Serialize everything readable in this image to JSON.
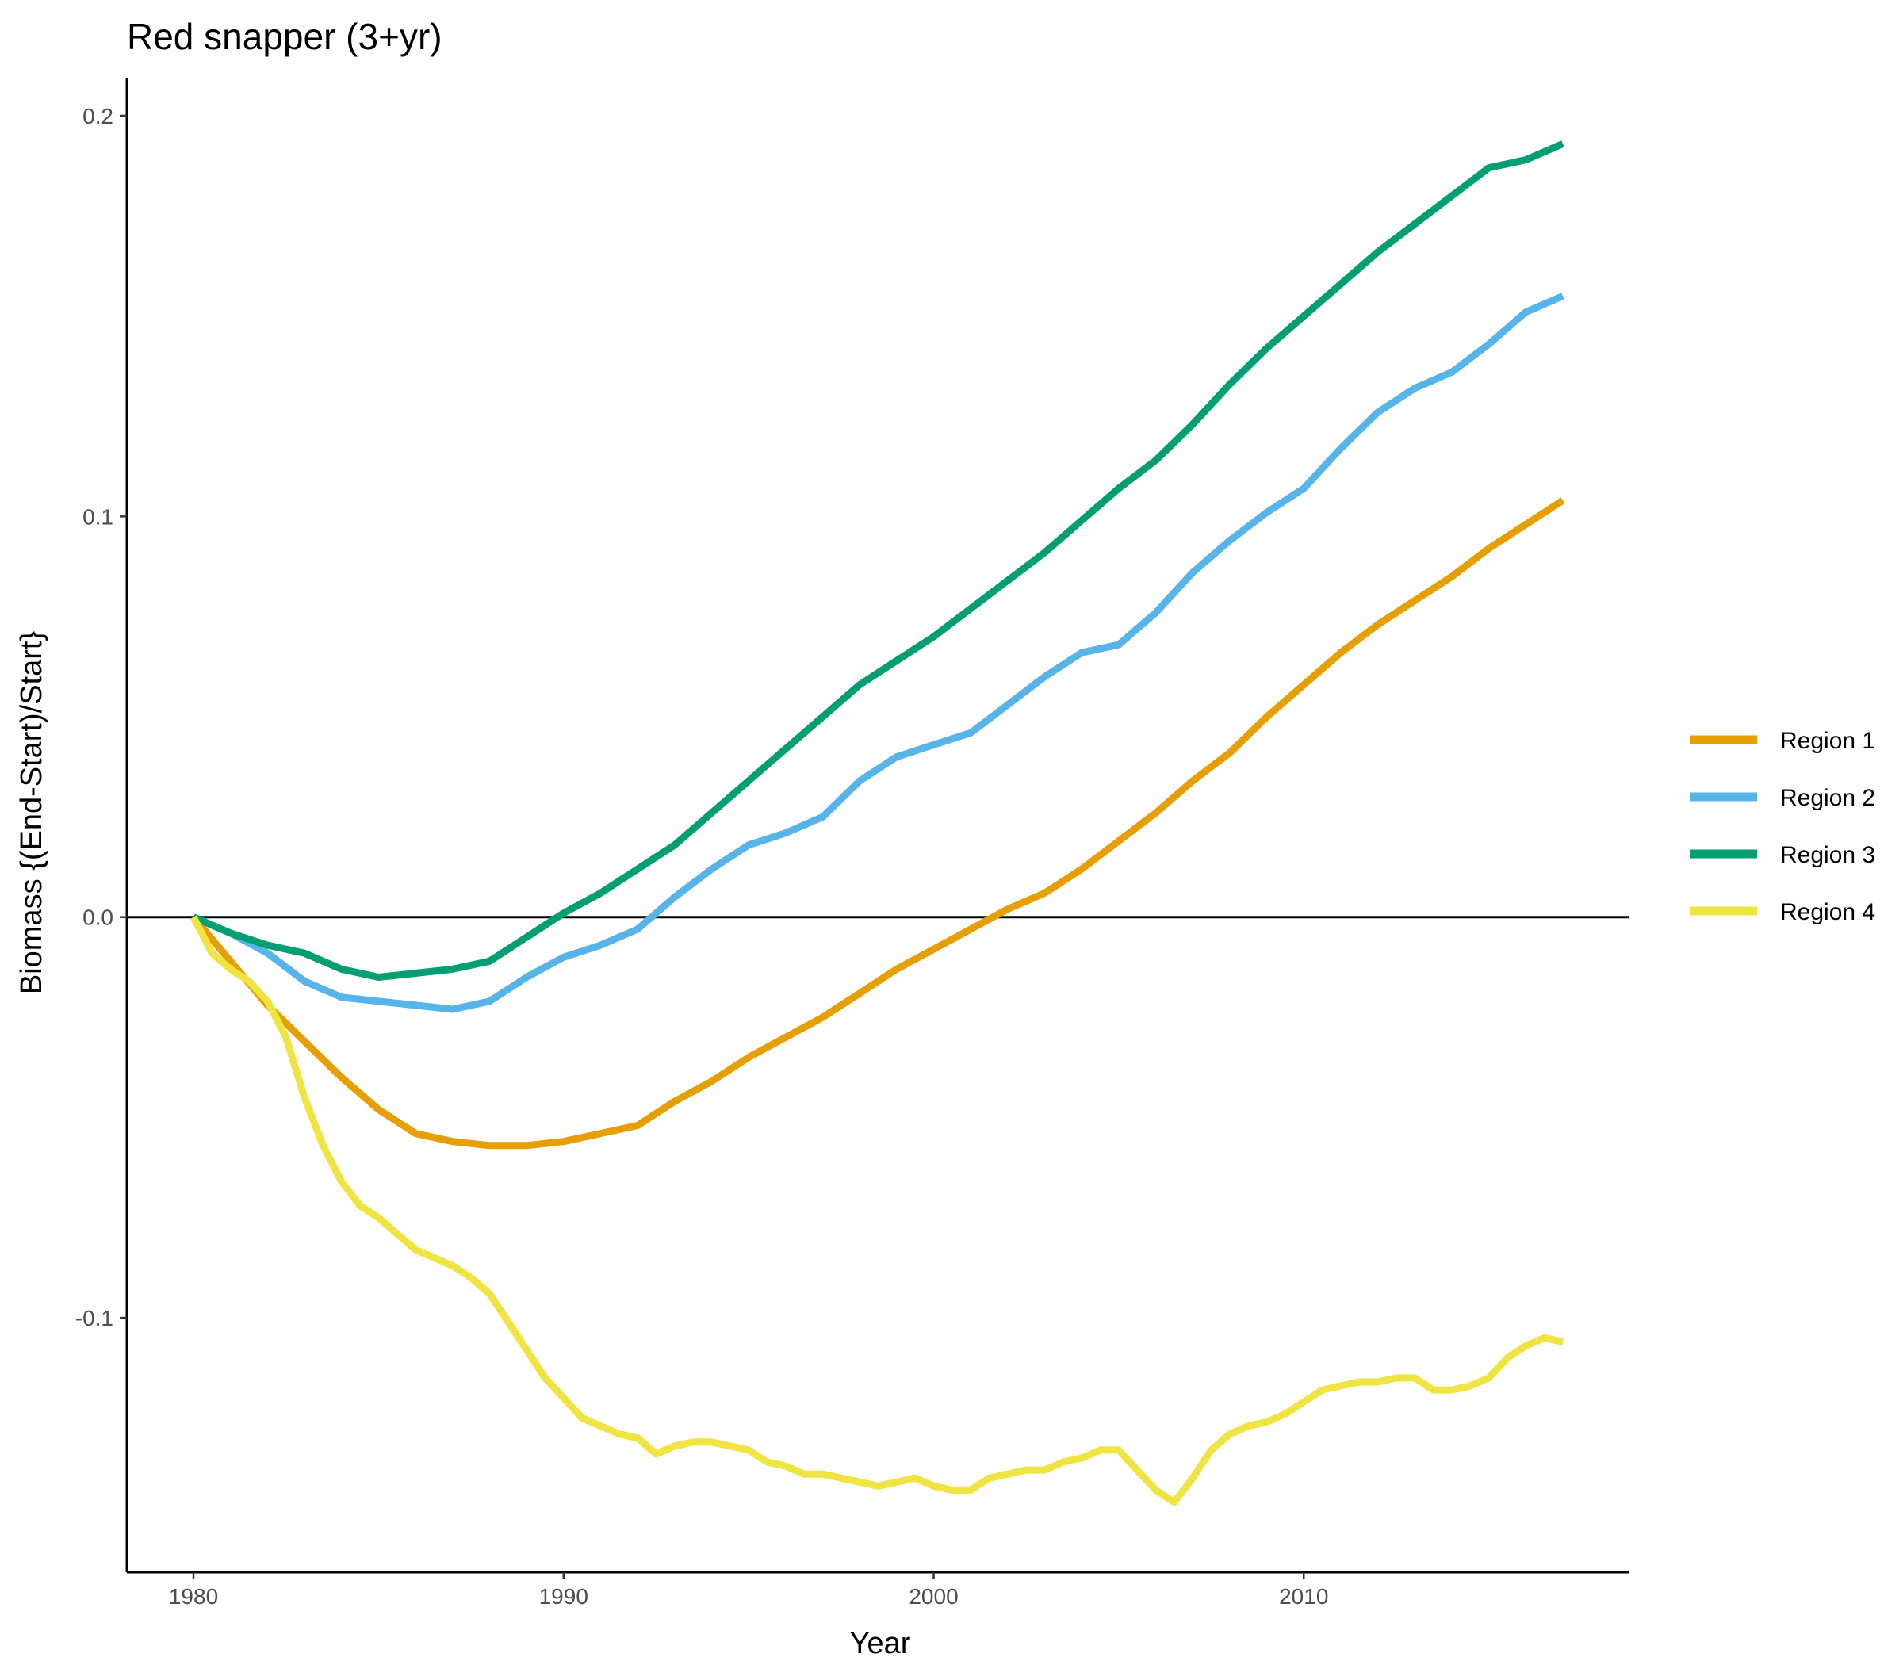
{
  "chart_data": {
    "type": "line",
    "title": "Red snapper (3+yr)",
    "xlabel": "Year",
    "ylabel": "Biomass {(End-Start)/Start}",
    "xlim": [
      1978.2,
      2018.8
    ],
    "ylim": [
      -0.1635,
      0.2095
    ],
    "x_ticks": [
      1980,
      1990,
      2000,
      2010
    ],
    "y_ticks": [
      {
        "value": 0.2,
        "label": "0.2"
      },
      {
        "value": 0.1,
        "label": "0.1"
      },
      {
        "value": 0.0,
        "label": "0.0"
      },
      {
        "value": -0.1,
        "label": "-0.1"
      }
    ],
    "reference_line_y": 0.0,
    "grid": false,
    "legend_position": "right",
    "series": [
      {
        "name": "Region 1",
        "color": "#E69F00",
        "points": [
          [
            1980,
            0.0
          ],
          [
            1981,
            -0.011
          ],
          [
            1982,
            -0.022
          ],
          [
            1983,
            -0.031
          ],
          [
            1984,
            -0.04
          ],
          [
            1985,
            -0.048
          ],
          [
            1986,
            -0.054
          ],
          [
            1987,
            -0.056
          ],
          [
            1988,
            -0.057
          ],
          [
            1989,
            -0.057
          ],
          [
            1990,
            -0.056
          ],
          [
            1991,
            -0.054
          ],
          [
            1992,
            -0.052
          ],
          [
            1993,
            -0.046
          ],
          [
            1994,
            -0.041
          ],
          [
            1995,
            -0.035
          ],
          [
            1996,
            -0.03
          ],
          [
            1997,
            -0.025
          ],
          [
            1998,
            -0.019
          ],
          [
            1999,
            -0.013
          ],
          [
            2000,
            -0.008
          ],
          [
            2001,
            -0.003
          ],
          [
            2002,
            0.002
          ],
          [
            2003,
            0.006
          ],
          [
            2004,
            0.012
          ],
          [
            2005,
            0.019
          ],
          [
            2006,
            0.026
          ],
          [
            2007,
            0.034
          ],
          [
            2008,
            0.041
          ],
          [
            2009,
            0.05
          ],
          [
            2010,
            0.058
          ],
          [
            2011,
            0.066
          ],
          [
            2012,
            0.073
          ],
          [
            2013,
            0.079
          ],
          [
            2014,
            0.085
          ],
          [
            2015,
            0.092
          ],
          [
            2016,
            0.098
          ],
          [
            2017,
            0.104
          ]
        ]
      },
      {
        "name": "Region 2",
        "color": "#56B4E9",
        "points": [
          [
            1980,
            0.0
          ],
          [
            1981,
            -0.004
          ],
          [
            1982,
            -0.009
          ],
          [
            1983,
            -0.016
          ],
          [
            1984,
            -0.02
          ],
          [
            1985,
            -0.021
          ],
          [
            1986,
            -0.022
          ],
          [
            1987,
            -0.023
          ],
          [
            1988,
            -0.021
          ],
          [
            1989,
            -0.015
          ],
          [
            1990,
            -0.01
          ],
          [
            1991,
            -0.007
          ],
          [
            1992,
            -0.003
          ],
          [
            1993,
            0.005
          ],
          [
            1994,
            0.012
          ],
          [
            1995,
            0.018
          ],
          [
            1996,
            0.021
          ],
          [
            1997,
            0.025
          ],
          [
            1998,
            0.034
          ],
          [
            1999,
            0.04
          ],
          [
            2000,
            0.043
          ],
          [
            2001,
            0.046
          ],
          [
            2002,
            0.053
          ],
          [
            2003,
            0.06
          ],
          [
            2004,
            0.066
          ],
          [
            2005,
            0.068
          ],
          [
            2006,
            0.076
          ],
          [
            2007,
            0.086
          ],
          [
            2008,
            0.094
          ],
          [
            2009,
            0.101
          ],
          [
            2010,
            0.107
          ],
          [
            2011,
            0.117
          ],
          [
            2012,
            0.126
          ],
          [
            2013,
            0.132
          ],
          [
            2014,
            0.136
          ],
          [
            2015,
            0.143
          ],
          [
            2016,
            0.151
          ],
          [
            2017,
            0.155
          ]
        ]
      },
      {
        "name": "Region 3",
        "color": "#009E73",
        "points": [
          [
            1980,
            0.0
          ],
          [
            1981,
            -0.004
          ],
          [
            1982,
            -0.007
          ],
          [
            1983,
            -0.009
          ],
          [
            1984,
            -0.013
          ],
          [
            1985,
            -0.015
          ],
          [
            1986,
            -0.014
          ],
          [
            1987,
            -0.013
          ],
          [
            1988,
            -0.011
          ],
          [
            1989,
            -0.005
          ],
          [
            1990,
            0.001
          ],
          [
            1991,
            0.006
          ],
          [
            1992,
            0.012
          ],
          [
            1993,
            0.018
          ],
          [
            1994,
            0.026
          ],
          [
            1995,
            0.034
          ],
          [
            1996,
            0.042
          ],
          [
            1997,
            0.05
          ],
          [
            1998,
            0.058
          ],
          [
            1999,
            0.064
          ],
          [
            2000,
            0.07
          ],
          [
            2001,
            0.077
          ],
          [
            2002,
            0.084
          ],
          [
            2003,
            0.091
          ],
          [
            2004,
            0.099
          ],
          [
            2005,
            0.107
          ],
          [
            2006,
            0.114
          ],
          [
            2007,
            0.123
          ],
          [
            2008,
            0.133
          ],
          [
            2009,
            0.142
          ],
          [
            2010,
            0.15
          ],
          [
            2011,
            0.158
          ],
          [
            2012,
            0.166
          ],
          [
            2013,
            0.173
          ],
          [
            2014,
            0.18
          ],
          [
            2015,
            0.187
          ],
          [
            2016,
            0.189
          ],
          [
            2017,
            0.193
          ]
        ]
      },
      {
        "name": "Region 4",
        "color": "#F0E442",
        "points": [
          [
            1980,
            0.0
          ],
          [
            1980.5,
            -0.009
          ],
          [
            1981,
            -0.013
          ],
          [
            1981.5,
            -0.016
          ],
          [
            1982,
            -0.021
          ],
          [
            1982.5,
            -0.03
          ],
          [
            1983,
            -0.045
          ],
          [
            1983.5,
            -0.057
          ],
          [
            1984,
            -0.066
          ],
          [
            1984.5,
            -0.072
          ],
          [
            1985,
            -0.075
          ],
          [
            1985.5,
            -0.079
          ],
          [
            1986,
            -0.083
          ],
          [
            1986.5,
            -0.085
          ],
          [
            1987,
            -0.087
          ],
          [
            1987.5,
            -0.09
          ],
          [
            1988,
            -0.094
          ],
          [
            1988.5,
            -0.101
          ],
          [
            1989,
            -0.108
          ],
          [
            1989.5,
            -0.115
          ],
          [
            1990,
            -0.12
          ],
          [
            1990.5,
            -0.125
          ],
          [
            1991,
            -0.127
          ],
          [
            1991.5,
            -0.129
          ],
          [
            1992,
            -0.13
          ],
          [
            1992.5,
            -0.134
          ],
          [
            1993,
            -0.132
          ],
          [
            1993.5,
            -0.131
          ],
          [
            1994,
            -0.131
          ],
          [
            1994.5,
            -0.132
          ],
          [
            1995,
            -0.133
          ],
          [
            1995.5,
            -0.136
          ],
          [
            1996,
            -0.137
          ],
          [
            1996.5,
            -0.139
          ],
          [
            1997,
            -0.139
          ],
          [
            1997.5,
            -0.14
          ],
          [
            1998,
            -0.141
          ],
          [
            1998.5,
            -0.142
          ],
          [
            1999,
            -0.141
          ],
          [
            1999.5,
            -0.14
          ],
          [
            2000,
            -0.142
          ],
          [
            2000.5,
            -0.143
          ],
          [
            2001,
            -0.143
          ],
          [
            2001.5,
            -0.14
          ],
          [
            2002,
            -0.139
          ],
          [
            2002.5,
            -0.138
          ],
          [
            2003,
            -0.138
          ],
          [
            2003.5,
            -0.136
          ],
          [
            2004,
            -0.135
          ],
          [
            2004.5,
            -0.133
          ],
          [
            2005,
            -0.133
          ],
          [
            2005.5,
            -0.138
          ],
          [
            2006,
            -0.143
          ],
          [
            2006.5,
            -0.146
          ],
          [
            2007,
            -0.14
          ],
          [
            2007.5,
            -0.133
          ],
          [
            2008,
            -0.129
          ],
          [
            2008.5,
            -0.127
          ],
          [
            2009,
            -0.126
          ],
          [
            2009.5,
            -0.124
          ],
          [
            2010,
            -0.121
          ],
          [
            2010.5,
            -0.118
          ],
          [
            2011,
            -0.117
          ],
          [
            2011.5,
            -0.116
          ],
          [
            2012,
            -0.116
          ],
          [
            2012.5,
            -0.115
          ],
          [
            2013,
            -0.115
          ],
          [
            2013.5,
            -0.118
          ],
          [
            2014,
            -0.118
          ],
          [
            2014.5,
            -0.117
          ],
          [
            2015,
            -0.115
          ],
          [
            2015.5,
            -0.11
          ],
          [
            2016,
            -0.107
          ],
          [
            2016.5,
            -0.105
          ],
          [
            2017,
            -0.106
          ]
        ]
      }
    ]
  }
}
